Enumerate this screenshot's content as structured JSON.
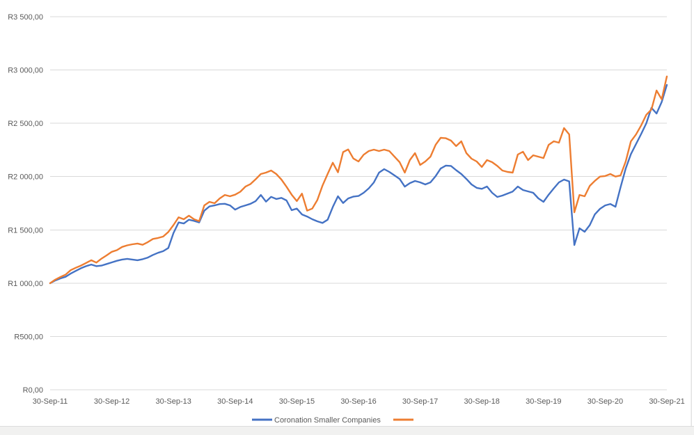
{
  "colors": {
    "background": "#ffffff",
    "gridline": "#d9d9d9",
    "axis_label_text": "#595959",
    "series_blue": "#4472c4",
    "series_orange": "#ed7d31",
    "footer_bar": "#f1f1f0"
  },
  "chart_data": {
    "type": "line",
    "title": "",
    "grid": true,
    "legend_position": "bottom",
    "x_start_label": "30-Sep-11",
    "x_end_label": "30-Sep-21",
    "x_interval": "monthly",
    "ylim": [
      0,
      3500
    ],
    "y_step": 500,
    "y_ticks": [
      {
        "value": 0,
        "label": "R0,00"
      },
      {
        "value": 500,
        "label": "R500,00"
      },
      {
        "value": 1000,
        "label": "R1 000,00"
      },
      {
        "value": 1500,
        "label": "R1 500,00"
      },
      {
        "value": 2000,
        "label": "R2 000,00"
      },
      {
        "value": 2500,
        "label": "R2 500,00"
      },
      {
        "value": 3000,
        "label": "R3 000,00"
      },
      {
        "value": 3500,
        "label": "R3 500,00"
      }
    ],
    "x_ticks": [
      {
        "month_index": 0,
        "label": "30-Sep-11"
      },
      {
        "month_index": 12,
        "label": "30-Sep-12"
      },
      {
        "month_index": 24,
        "label": "30-Sep-13"
      },
      {
        "month_index": 36,
        "label": "30-Sep-14"
      },
      {
        "month_index": 48,
        "label": "30-Sep-15"
      },
      {
        "month_index": 60,
        "label": "30-Sep-16"
      },
      {
        "month_index": 72,
        "label": "30-Sep-17"
      },
      {
        "month_index": 84,
        "label": "30-Sep-18"
      },
      {
        "month_index": 96,
        "label": "30-Sep-19"
      },
      {
        "month_index": 108,
        "label": "30-Sep-20"
      },
      {
        "month_index": 120,
        "label": "30-Sep-21"
      }
    ],
    "series": [
      {
        "name": "Coronation Smaller Companies",
        "color": "#4472c4",
        "values": [
          1000,
          1025,
          1045,
          1060,
          1090,
          1115,
          1140,
          1160,
          1175,
          1160,
          1165,
          1180,
          1195,
          1210,
          1222,
          1228,
          1222,
          1215,
          1225,
          1240,
          1265,
          1285,
          1300,
          1330,
          1470,
          1570,
          1560,
          1595,
          1585,
          1570,
          1680,
          1720,
          1730,
          1742,
          1745,
          1730,
          1690,
          1715,
          1730,
          1745,
          1770,
          1828,
          1765,
          1810,
          1790,
          1800,
          1776,
          1685,
          1700,
          1645,
          1625,
          1600,
          1580,
          1565,
          1595,
          1715,
          1815,
          1752,
          1795,
          1812,
          1818,
          1848,
          1890,
          1945,
          2037,
          2070,
          2044,
          2011,
          1978,
          1906,
          1939,
          1959,
          1946,
          1926,
          1946,
          2004,
          2076,
          2103,
          2100,
          2060,
          2024,
          1978,
          1926,
          1894,
          1885,
          1907,
          1848,
          1809,
          1822,
          1841,
          1860,
          1907,
          1874,
          1861,
          1848,
          1796,
          1763,
          1830,
          1890,
          1946,
          1972,
          1955,
          1358,
          1515,
          1482,
          1545,
          1646,
          1698,
          1730,
          1743,
          1717,
          1900,
          2076,
          2210,
          2305,
          2400,
          2500,
          2645,
          2592,
          2700,
          2860
        ]
      },
      {
        "name": "",
        "color": "#ed7d31",
        "values": [
          1000,
          1033,
          1058,
          1080,
          1122,
          1145,
          1165,
          1190,
          1215,
          1193,
          1230,
          1261,
          1294,
          1310,
          1340,
          1355,
          1365,
          1372,
          1360,
          1385,
          1415,
          1424,
          1437,
          1480,
          1545,
          1618,
          1600,
          1633,
          1600,
          1582,
          1730,
          1763,
          1750,
          1795,
          1828,
          1815,
          1830,
          1858,
          1906,
          1930,
          1975,
          2024,
          2037,
          2057,
          2024,
          1972,
          1905,
          1830,
          1770,
          1840,
          1680,
          1700,
          1780,
          1915,
          2025,
          2130,
          2040,
          2230,
          2255,
          2170,
          2142,
          2205,
          2240,
          2253,
          2240,
          2253,
          2240,
          2187,
          2135,
          2037,
          2155,
          2220,
          2109,
          2142,
          2187,
          2298,
          2364,
          2360,
          2338,
          2286,
          2331,
          2220,
          2168,
          2142,
          2090,
          2155,
          2135,
          2100,
          2057,
          2044,
          2037,
          2207,
          2233,
          2155,
          2200,
          2187,
          2174,
          2298,
          2331,
          2318,
          2455,
          2396,
          1665,
          1828,
          1815,
          1913,
          1960,
          2000,
          2005,
          2024,
          2000,
          2011,
          2142,
          2330,
          2395,
          2480,
          2580,
          2630,
          2808,
          2725,
          2940
        ]
      }
    ]
  },
  "legend": {
    "item1_label": "Coronation Smaller Companies",
    "item2_label": ""
  }
}
